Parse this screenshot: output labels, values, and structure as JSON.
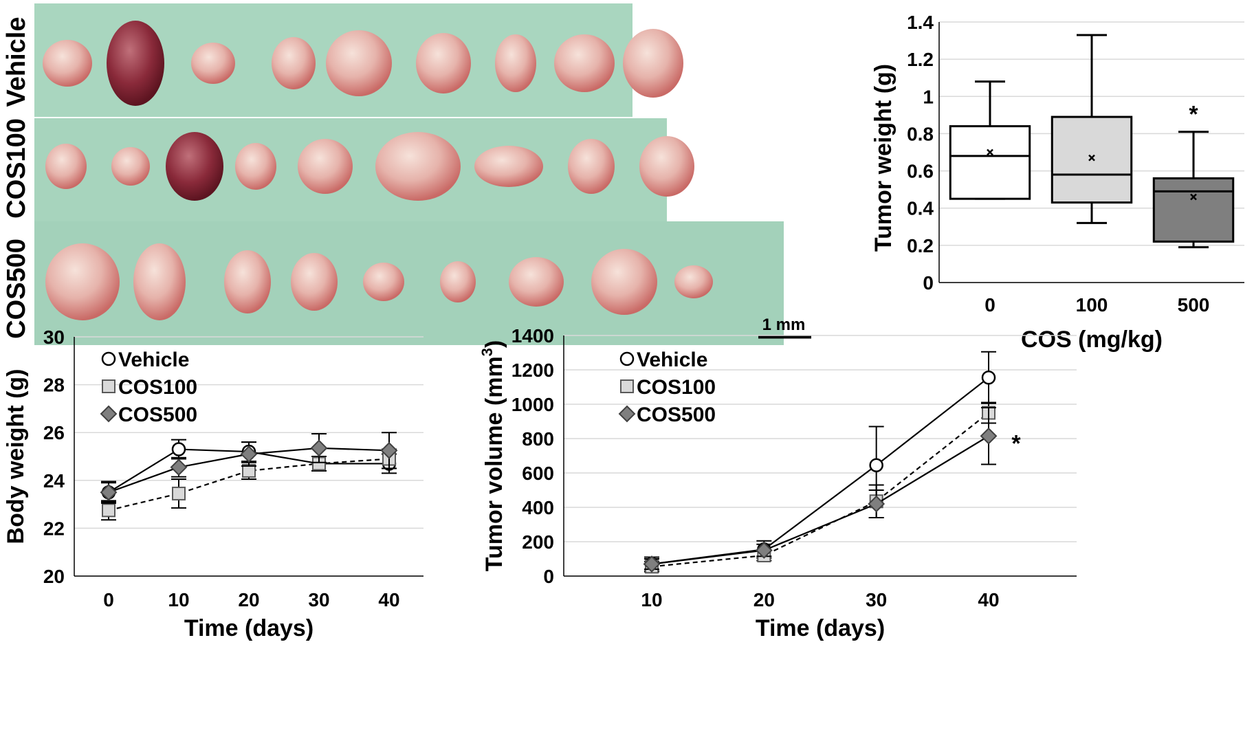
{
  "photo": {
    "rows": [
      {
        "label": "Vehicle",
        "tumors": 9
      },
      {
        "label": "COS100",
        "tumors": 9
      },
      {
        "label": "COS500",
        "tumors": 9
      }
    ],
    "scale_bar": "1 mm"
  },
  "chart_data": [
    {
      "type": "box",
      "title": "",
      "xlabel": "COS (mg/kg)",
      "ylabel": "Tumor weight (g)",
      "ylim": [
        0,
        1.4
      ],
      "yticks": [
        "0",
        "0.2",
        "0.4",
        "0.6",
        "0.8",
        "1",
        "1.2",
        "1.4"
      ],
      "categories": [
        "0",
        "100",
        "500"
      ],
      "boxes": [
        {
          "name": "0",
          "min": 0.45,
          "q1": 0.45,
          "median": 0.68,
          "q3": 0.84,
          "max": 1.08,
          "mean": 0.7,
          "fill": "#ffffff",
          "annotation": ""
        },
        {
          "name": "100",
          "min": 0.32,
          "q1": 0.43,
          "median": 0.58,
          "q3": 0.89,
          "max": 1.33,
          "mean": 0.67,
          "fill": "#d9d9d9",
          "annotation": ""
        },
        {
          "name": "500",
          "min": 0.19,
          "q1": 0.22,
          "median": 0.49,
          "q3": 0.56,
          "max": 0.81,
          "mean": 0.46,
          "fill": "#7f7f7f",
          "annotation": "*"
        }
      ]
    },
    {
      "type": "line",
      "title": "",
      "xlabel": "Time (days)",
      "ylabel": "Body weight (g)",
      "ylim": [
        20,
        30
      ],
      "yticks": [
        "20",
        "22",
        "24",
        "26",
        "28",
        "30"
      ],
      "x": [
        0,
        10,
        20,
        30,
        40
      ],
      "xticks": [
        "0",
        "10",
        "20",
        "30",
        "40"
      ],
      "legend": [
        "Vehicle",
        "COS100",
        "COS500"
      ],
      "series": [
        {
          "name": "Vehicle",
          "marker": "circle",
          "dash": false,
          "values": [
            23.5,
            25.3,
            25.2,
            24.7,
            24.7
          ],
          "err": [
            0.4,
            0.4,
            0.4,
            0.3,
            0.4
          ]
        },
        {
          "name": "COS100",
          "marker": "square",
          "dash": true,
          "values": [
            22.75,
            23.45,
            24.4,
            24.7,
            24.9
          ],
          "err": [
            0.4,
            0.6,
            0.35,
            0.3,
            0.4
          ]
        },
        {
          "name": "COS500",
          "marker": "diamond",
          "dash": false,
          "values": [
            23.5,
            24.55,
            25.1,
            25.35,
            25.25
          ],
          "err": [
            0.45,
            0.4,
            0.5,
            0.6,
            0.75
          ]
        }
      ]
    },
    {
      "type": "line",
      "title": "",
      "xlabel": "Time (days)",
      "ylabel": "Tumor volume (mm",
      "ylabel_sup": "3",
      "ylabel_end": ")",
      "ylim": [
        0,
        1400
      ],
      "yticks": [
        "0",
        "200",
        "400",
        "600",
        "800",
        "1000",
        "1200",
        "1400"
      ],
      "x": [
        10,
        20,
        30,
        40
      ],
      "xticks": [
        "10",
        "20",
        "30",
        "40"
      ],
      "legend": [
        "Vehicle",
        "COS100",
        "COS500"
      ],
      "annotation": "*",
      "series": [
        {
          "name": "Vehicle",
          "marker": "circle",
          "dash": false,
          "values": [
            70,
            155,
            645,
            1155
          ],
          "err": [
            40,
            50,
            225,
            150
          ]
        },
        {
          "name": "COS100",
          "marker": "square",
          "dash": true,
          "values": [
            55,
            120,
            435,
            950
          ],
          "err": [
            30,
            30,
            95,
            60
          ]
        },
        {
          "name": "COS500",
          "marker": "diamond",
          "dash": false,
          "values": [
            70,
            150,
            420,
            815
          ],
          "err": [
            30,
            35,
            80,
            165
          ]
        }
      ]
    }
  ]
}
